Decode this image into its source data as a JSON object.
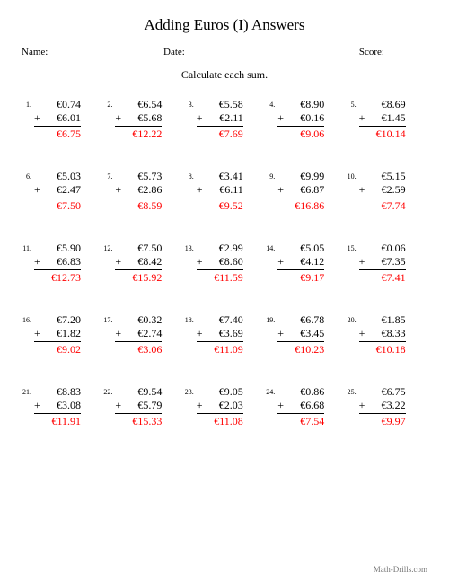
{
  "title": "Adding Euros (I) Answers",
  "labels": {
    "name": "Name:",
    "date": "Date:",
    "score": "Score:"
  },
  "instruction": "Calculate each sum.",
  "footer": "Math-Drills.com",
  "colors": {
    "answer": "#ff0000",
    "text": "#000000",
    "bg": "#ffffff",
    "footer": "#777777"
  },
  "grid": {
    "rows": 5,
    "cols": 5
  },
  "problems": [
    {
      "n": "1.",
      "a": "€0.74",
      "b": "€6.01",
      "ans": "€6.75"
    },
    {
      "n": "2.",
      "a": "€6.54",
      "b": "€5.68",
      "ans": "€12.22"
    },
    {
      "n": "3.",
      "a": "€5.58",
      "b": "€2.11",
      "ans": "€7.69"
    },
    {
      "n": "4.",
      "a": "€8.90",
      "b": "€0.16",
      "ans": "€9.06"
    },
    {
      "n": "5.",
      "a": "€8.69",
      "b": "€1.45",
      "ans": "€10.14"
    },
    {
      "n": "6.",
      "a": "€5.03",
      "b": "€2.47",
      "ans": "€7.50"
    },
    {
      "n": "7.",
      "a": "€5.73",
      "b": "€2.86",
      "ans": "€8.59"
    },
    {
      "n": "8.",
      "a": "€3.41",
      "b": "€6.11",
      "ans": "€9.52"
    },
    {
      "n": "9.",
      "a": "€9.99",
      "b": "€6.87",
      "ans": "€16.86"
    },
    {
      "n": "10.",
      "a": "€5.15",
      "b": "€2.59",
      "ans": "€7.74"
    },
    {
      "n": "11.",
      "a": "€5.90",
      "b": "€6.83",
      "ans": "€12.73"
    },
    {
      "n": "12.",
      "a": "€7.50",
      "b": "€8.42",
      "ans": "€15.92"
    },
    {
      "n": "13.",
      "a": "€2.99",
      "b": "€8.60",
      "ans": "€11.59"
    },
    {
      "n": "14.",
      "a": "€5.05",
      "b": "€4.12",
      "ans": "€9.17"
    },
    {
      "n": "15.",
      "a": "€0.06",
      "b": "€7.35",
      "ans": "€7.41"
    },
    {
      "n": "16.",
      "a": "€7.20",
      "b": "€1.82",
      "ans": "€9.02"
    },
    {
      "n": "17.",
      "a": "€0.32",
      "b": "€2.74",
      "ans": "€3.06"
    },
    {
      "n": "18.",
      "a": "€7.40",
      "b": "€3.69",
      "ans": "€11.09"
    },
    {
      "n": "19.",
      "a": "€6.78",
      "b": "€3.45",
      "ans": "€10.23"
    },
    {
      "n": "20.",
      "a": "€1.85",
      "b": "€8.33",
      "ans": "€10.18"
    },
    {
      "n": "21.",
      "a": "€8.83",
      "b": "€3.08",
      "ans": "€11.91"
    },
    {
      "n": "22.",
      "a": "€9.54",
      "b": "€5.79",
      "ans": "€15.33"
    },
    {
      "n": "23.",
      "a": "€9.05",
      "b": "€2.03",
      "ans": "€11.08"
    },
    {
      "n": "24.",
      "a": "€0.86",
      "b": "€6.68",
      "ans": "€7.54"
    },
    {
      "n": "25.",
      "a": "€6.75",
      "b": "€3.22",
      "ans": "€9.97"
    }
  ]
}
